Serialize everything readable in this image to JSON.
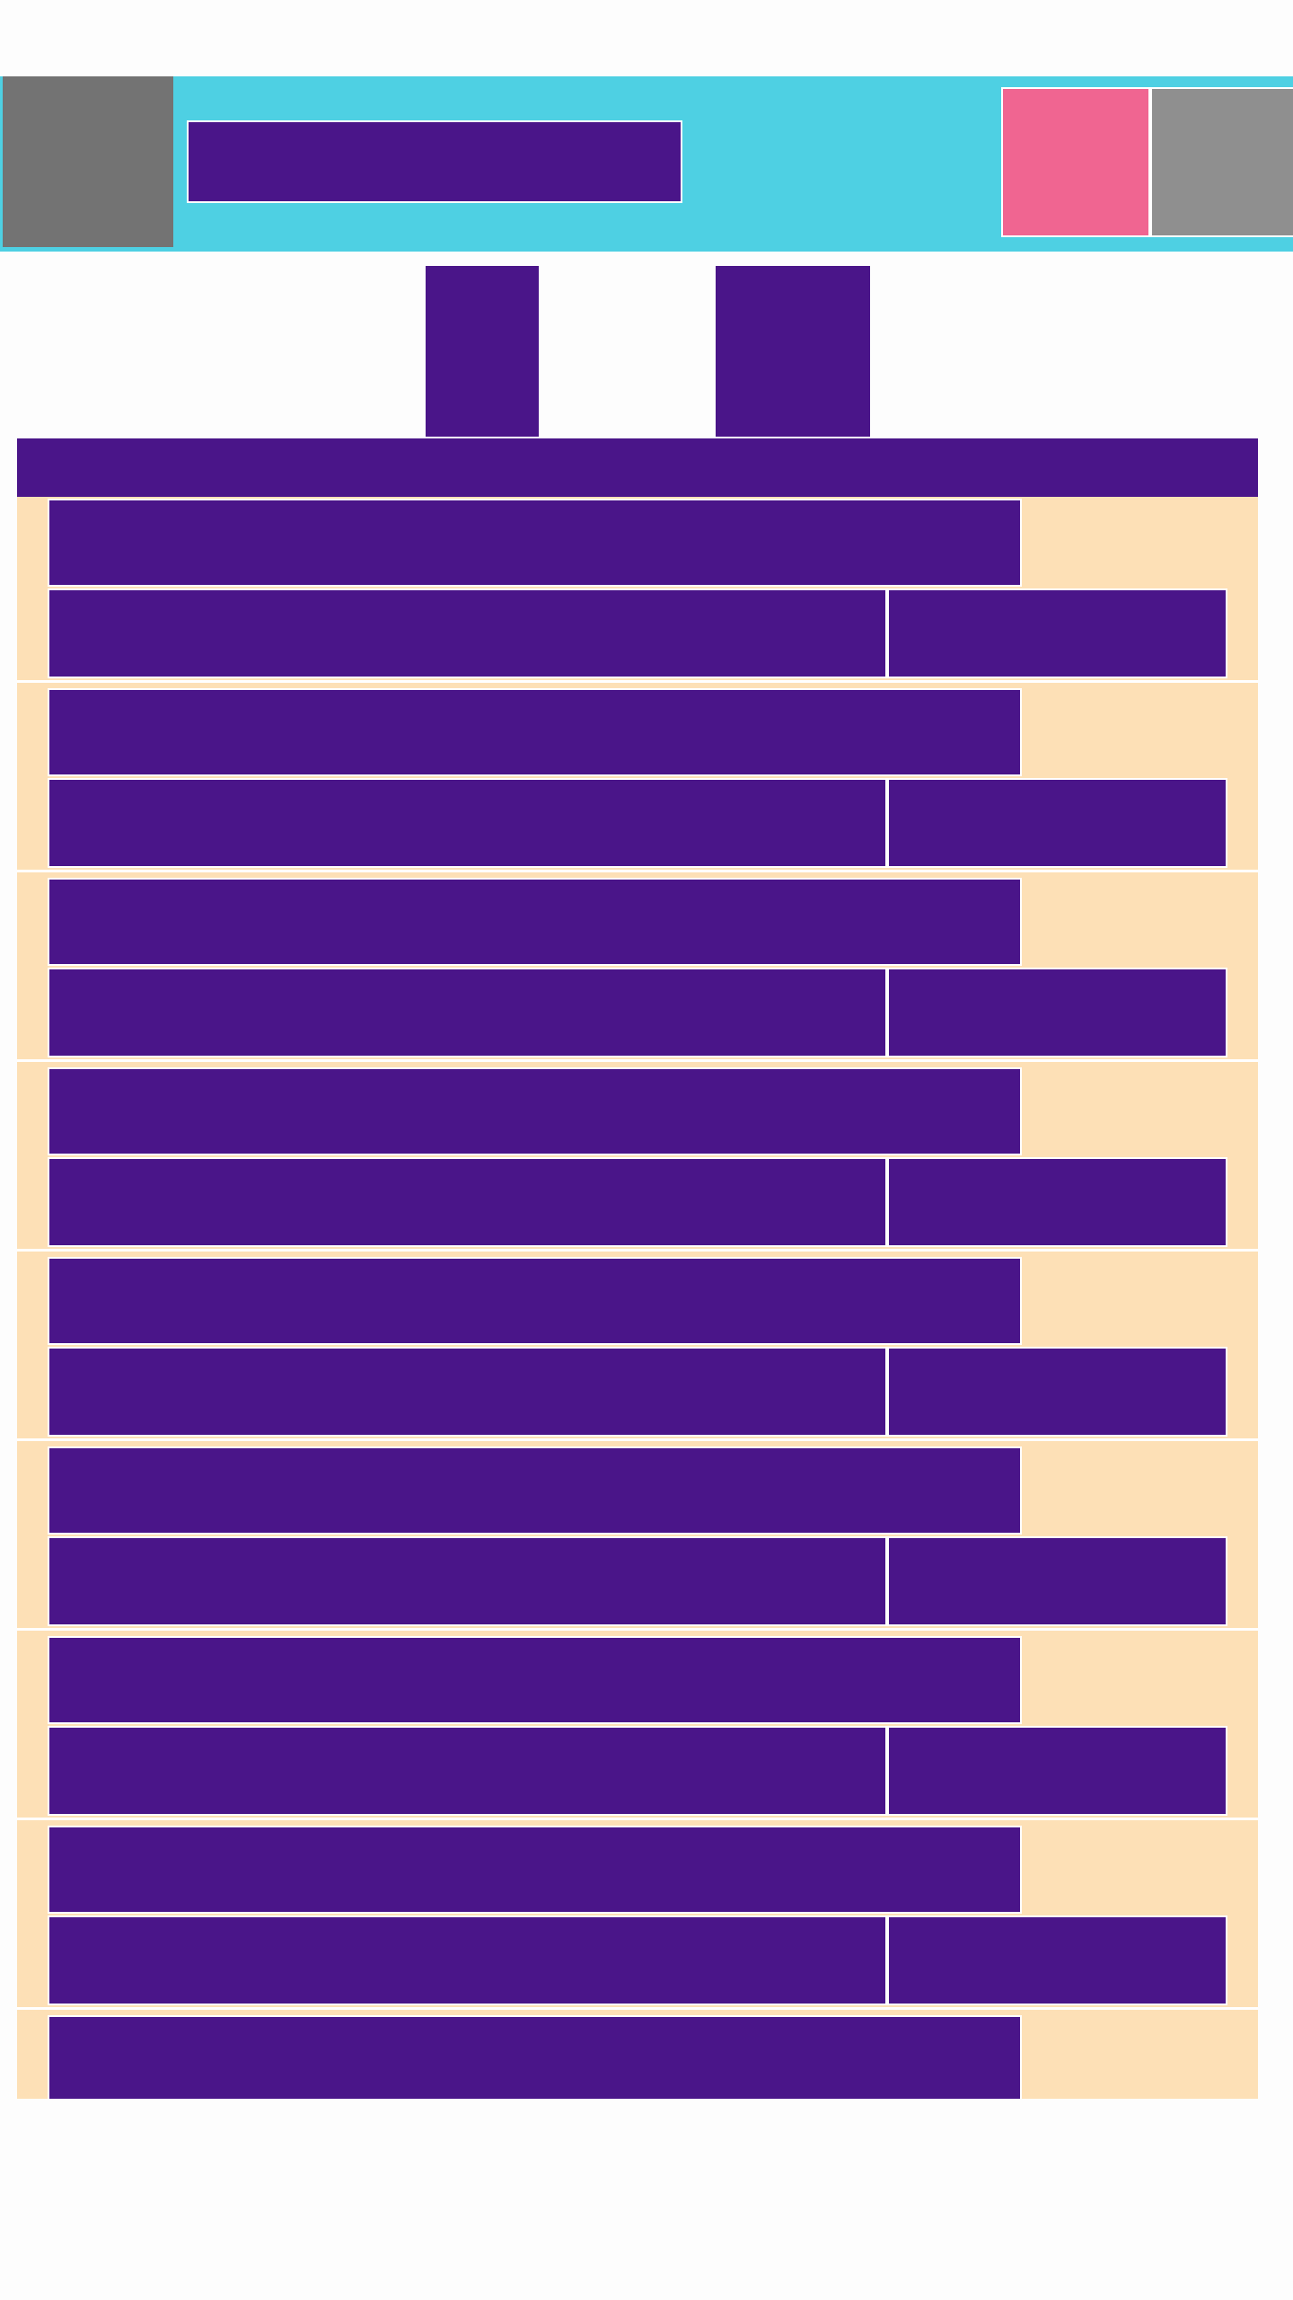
{
  "colors": {
    "header_bg": "#4ed0e3",
    "logo_bg": "#737373",
    "block_bg": "#4a1589",
    "row_bg": "#fde0b6",
    "pink": "#f06591",
    "gray": "#8f8f8f",
    "page_bg": "#fdfdfd"
  },
  "list": {
    "entries": [
      {
        "title": "",
        "detail": "",
        "meta": ""
      },
      {
        "title": "",
        "detail": "",
        "meta": ""
      },
      {
        "title": "",
        "detail": "",
        "meta": ""
      },
      {
        "title": "",
        "detail": "",
        "meta": ""
      },
      {
        "title": "",
        "detail": "",
        "meta": ""
      },
      {
        "title": "",
        "detail": "",
        "meta": ""
      },
      {
        "title": "",
        "detail": "",
        "meta": ""
      },
      {
        "title": "",
        "detail": "",
        "meta": ""
      },
      {
        "title": "",
        "detail": "",
        "meta": ""
      }
    ]
  }
}
